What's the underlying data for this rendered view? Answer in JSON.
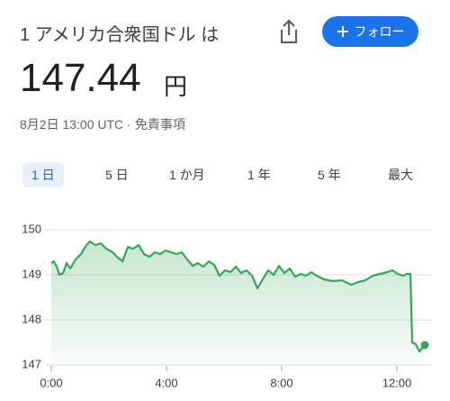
{
  "header": {
    "title": "1 アメリカ合衆国ドル は",
    "price": "147.44",
    "currency": "円",
    "timestamp": "8月2日 13:00 UTC",
    "separator": "·",
    "disclaimer": "免責事項"
  },
  "follow_button": "フォロー",
  "tabs": [
    "1 日",
    "5 日",
    "1 か月",
    "1 年",
    "5 年",
    "最大"
  ],
  "chart_data": {
    "type": "line",
    "x": [
      0,
      0.09,
      0.19,
      0.28,
      0.41,
      0.53,
      0.66,
      0.84,
      1.03,
      1.22,
      1.34,
      1.53,
      1.72,
      1.91,
      2.13,
      2.28,
      2.47,
      2.66,
      2.84,
      3.03,
      3.22,
      3.41,
      3.59,
      3.78,
      3.97,
      4.16,
      4.34,
      4.53,
      4.72,
      4.91,
      5.09,
      5.28,
      5.47,
      5.66,
      5.84,
      6.03,
      6.22,
      6.41,
      6.59,
      6.78,
      6.97,
      7.16,
      7.34,
      7.53,
      7.72,
      7.91,
      8.09,
      8.28,
      8.47,
      8.66,
      8.84,
      9.03,
      9.22,
      9.47,
      9.78,
      10.09,
      10.41,
      10.66,
      10.91,
      11.16,
      11.41,
      11.66,
      11.84,
      12.03,
      12.22,
      12.34,
      12.47,
      12.53,
      12.66,
      12.78,
      12.97
    ],
    "values": [
      149.26,
      149.3,
      149.18,
      149.0,
      149.04,
      149.26,
      149.14,
      149.34,
      149.46,
      149.66,
      149.74,
      149.66,
      149.7,
      149.58,
      149.5,
      149.4,
      149.3,
      149.62,
      149.58,
      149.66,
      149.46,
      149.4,
      149.5,
      149.46,
      149.54,
      149.5,
      149.46,
      149.5,
      149.34,
      149.2,
      149.26,
      149.18,
      149.3,
      149.22,
      148.98,
      149.1,
      149.06,
      149.18,
      149.04,
      149.1,
      148.98,
      148.7,
      148.9,
      149.1,
      149.0,
      149.2,
      149.04,
      149.14,
      148.96,
      149.02,
      148.98,
      149.06,
      148.98,
      148.9,
      148.86,
      148.88,
      148.78,
      148.84,
      148.88,
      148.98,
      149.02,
      149.06,
      149.1,
      149.02,
      148.98,
      149.02,
      149.02,
      147.5,
      147.46,
      147.3,
      147.44
    ],
    "color": "#34a853",
    "xlim": [
      0,
      13.16
    ],
    "xticks": [
      {
        "value": 0,
        "label": "0:00"
      },
      {
        "value": 4,
        "label": "4:00"
      },
      {
        "value": 8,
        "label": "8:00"
      },
      {
        "value": 12,
        "label": "12:00"
      }
    ],
    "ylim": [
      146.9,
      150.3
    ],
    "yticks": [
      147,
      148,
      149,
      150
    ],
    "grid": true
  }
}
